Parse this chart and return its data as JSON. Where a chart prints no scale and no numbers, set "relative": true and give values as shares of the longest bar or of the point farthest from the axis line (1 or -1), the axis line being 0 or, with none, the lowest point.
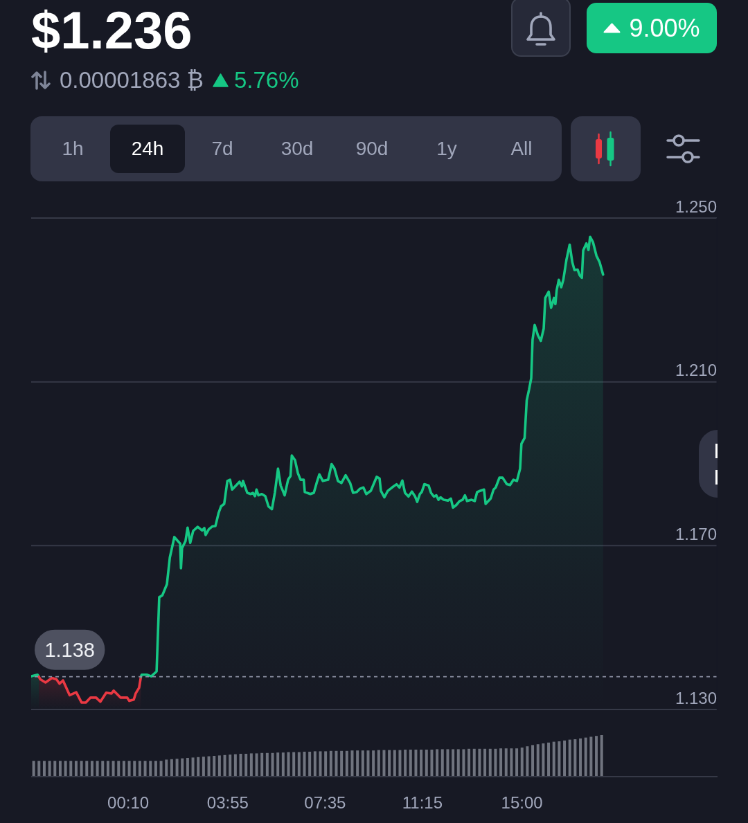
{
  "chart_data": [
    {
      "type": "area",
      "title": "$1.236",
      "subtitle": "0.00001863 ₿",
      "annotations": [
        "5.76%",
        "9.00%",
        "1h",
        "24h",
        "7d",
        "30d",
        "90d",
        "1y",
        "All"
      ],
      "series": [
        {
          "color": "#16c784",
          "x": [
            -3.49,
            -3.25,
            -3.2
          ],
          "values": [
            1.1381,
            1.1385,
            1.138
          ]
        },
        {
          "color": "#ea3943",
          "x": [
            -3.2,
            -3.15,
            -2.95,
            -2.71,
            -2.54,
            -2.42,
            -2.29,
            -2.04,
            -1.79,
            -1.59,
            -1.43,
            -1.25,
            -1.04,
            -0.88,
            -0.66,
            -0.46,
            -0.38,
            -0.12,
            0.13,
            0.21,
            0.38,
            0.45,
            0.58,
            0.65
          ],
          "values": [
            1.138,
            1.1374,
            1.1366,
            1.1377,
            1.1374,
            1.1363,
            1.1371,
            1.1335,
            1.1342,
            1.1317,
            1.1317,
            1.1329,
            1.1329,
            1.1319,
            1.1341,
            1.1339,
            1.1346,
            1.1329,
            1.1329,
            1.1321,
            1.1324,
            1.1339,
            1.1353,
            1.138
          ]
        },
        {
          "color": "#16c784",
          "x": [
            0.65,
            0.68,
            0.87,
            1.04,
            1.24,
            1.34,
            1.46,
            1.63,
            1.74,
            1.91,
            2.13,
            2.16,
            2.2,
            2.33,
            2.41,
            2.51,
            2.62,
            2.79,
            2.96,
            3.04,
            3.09,
            3.21,
            3.34,
            3.46,
            3.58,
            3.67,
            3.79,
            3.91,
            4.01,
            4.09,
            4.24,
            4.37,
            4.46,
            4.5,
            4.66,
            4.79,
            4.87,
            4.95,
            5.01,
            5.08,
            5.21,
            5.34,
            5.46,
            5.59,
            5.7,
            5.82,
            5.92,
            6.07,
            6.2,
            6.29,
            6.34,
            6.46,
            6.57,
            6.67,
            6.79,
            6.83,
            7.04,
            7.17,
            7.29,
            7.38,
            7.51,
            7.71,
            7.84,
            7.95,
            8.08,
            8.21,
            8.37,
            8.54,
            8.65,
            8.79,
            8.91,
            9.04,
            9.15,
            9.32,
            9.54,
            9.65,
            9.7,
            9.83,
            9.96,
            10.12,
            10.29,
            10.4,
            10.51,
            10.61,
            10.74,
            10.87,
            10.99,
            11.07,
            11.17,
            11.24,
            11.34,
            11.5,
            11.59,
            11.7,
            11.79,
            11.87,
            11.95,
            12.07,
            12.23,
            12.34,
            12.42,
            12.54,
            12.67,
            12.78,
            12.87,
            12.95,
            13.12,
            13.24,
            13.33,
            13.45,
            13.59,
            13.65,
            13.84,
            13.95,
            14.03,
            14.17,
            14.29,
            14.45,
            14.57,
            14.7,
            14.83,
            14.95,
            15.0,
            15.12,
            15.2,
            15.29,
            15.37,
            15.42,
            15.5,
            15.62,
            15.73,
            15.84,
            15.9,
            16.03,
            16.12,
            16.23,
            16.28,
            16.33,
            16.41,
            16.5,
            16.58,
            16.7,
            16.82,
            16.92,
            17.0,
            17.12,
            17.2,
            17.28,
            17.33,
            17.45,
            17.53,
            17.59,
            17.7,
            17.83,
            17.95,
            18.08
          ],
          "values": [
            1.138,
            1.1385,
            1.1385,
            1.1381,
            1.1393,
            1.1574,
            1.1579,
            1.1606,
            1.1671,
            1.1721,
            1.1705,
            1.1645,
            1.1694,
            1.1711,
            1.1744,
            1.1707,
            1.1736,
            1.1746,
            1.1737,
            1.1743,
            1.1726,
            1.174,
            1.1747,
            1.1748,
            1.178,
            1.1796,
            1.1802,
            1.1858,
            1.1861,
            1.1837,
            1.1847,
            1.1856,
            1.1845,
            1.1858,
            1.1829,
            1.1826,
            1.1829,
            1.1821,
            1.1837,
            1.1823,
            1.1826,
            1.1821,
            1.1796,
            1.1789,
            1.1829,
            1.1888,
            1.1847,
            1.1823,
            1.1861,
            1.187,
            1.192,
            1.1909,
            1.1877,
            1.1861,
            1.1861,
            1.1831,
            1.1826,
            1.1829,
            1.1856,
            1.1874,
            1.1858,
            1.1861,
            1.1899,
            1.1888,
            1.1858,
            1.1853,
            1.1872,
            1.1853,
            1.1829,
            1.1831,
            1.1839,
            1.1842,
            1.1826,
            1.1834,
            1.1868,
            1.1864,
            1.1834,
            1.1818,
            1.1834,
            1.1842,
            1.185,
            1.1842,
            1.1859,
            1.1829,
            1.182,
            1.1832,
            1.182,
            1.1807,
            1.1826,
            1.1831,
            1.185,
            1.1847,
            1.1829,
            1.182,
            1.1823,
            1.1812,
            1.1818,
            1.1812,
            1.181,
            1.1815,
            1.1793,
            1.1799,
            1.1809,
            1.1812,
            1.1823,
            1.1809,
            1.1812,
            1.1809,
            1.1831,
            1.1834,
            1.1837,
            1.1802,
            1.1815,
            1.1837,
            1.1842,
            1.1866,
            1.1866,
            1.185,
            1.1848,
            1.1861,
            1.1858,
            1.1888,
            1.1949,
            1.1963,
            1.2055,
            1.2082,
            1.2109,
            1.2203,
            1.2239,
            1.2214,
            1.22,
            1.223,
            1.2305,
            1.232,
            1.2281,
            1.2305,
            1.229,
            1.2324,
            1.2349,
            1.2331,
            1.2349,
            1.2399,
            1.2435,
            1.2392,
            1.2373,
            1.2374,
            1.236,
            1.2354,
            1.2421,
            1.2438,
            1.2422,
            1.2454,
            1.2441,
            1.2408,
            1.2392,
            1.2362
          ]
        }
      ],
      "xlim": [
        -3.49,
        22.37
      ],
      "ylim": [
        1.13,
        1.25
      ],
      "yticks": [
        {
          "value": 1.13,
          "label": "1.130"
        },
        {
          "value": 1.17,
          "label": "1.170"
        },
        {
          "value": 1.21,
          "label": "1.210"
        },
        {
          "value": 1.25,
          "label": "1.250"
        }
      ],
      "grid": "y",
      "tick_labels": "y",
      "ref_lines": [
        {
          "axis": "y",
          "value": 1.138,
          "label": "1.138",
          "line_style": "dashed",
          "color": "#8d92a5"
        }
      ]
    },
    {
      "type": "bar",
      "relative": true,
      "color": "#70747f",
      "x": [
        -3.4,
        -3.2,
        -3.0,
        -2.8,
        -2.6,
        -2.4,
        -2.2,
        -2.0,
        -1.8,
        -1.6,
        -1.4,
        -1.2,
        -1.0,
        -0.8,
        -0.6,
        -0.4,
        -0.2,
        0,
        0.2,
        0.4,
        0.6,
        0.8,
        1.0,
        1.2,
        1.4,
        1.6,
        1.8,
        2.0,
        2.2,
        2.4,
        2.6,
        2.8,
        3.0,
        3.2,
        3.4,
        3.6,
        3.8,
        4.0,
        4.2,
        4.4,
        4.6,
        4.8,
        5.0,
        5.2,
        5.4,
        5.6,
        5.8,
        6.0,
        6.2,
        6.4,
        6.6,
        6.8,
        7.0,
        7.2,
        7.4,
        7.6,
        7.8,
        8.0,
        8.2,
        8.4,
        8.6,
        8.8,
        9.0,
        9.2,
        9.4,
        9.6,
        9.8,
        10.0,
        10.2,
        10.4,
        10.6,
        10.8,
        11.0,
        11.2,
        11.4,
        11.6,
        11.8,
        12.0,
        12.2,
        12.4,
        12.6,
        12.8,
        13.0,
        13.2,
        13.4,
        13.6,
        13.8,
        14.0,
        14.2,
        14.4,
        14.6,
        14.8,
        15.0,
        15.2,
        15.4,
        15.6,
        15.8,
        16.0,
        16.2,
        16.4,
        16.6,
        16.8,
        17.0,
        17.2,
        17.4,
        17.6,
        17.8,
        18.0
      ],
      "values": [
        0.38,
        0.38,
        0.38,
        0.38,
        0.38,
        0.38,
        0.38,
        0.38,
        0.38,
        0.38,
        0.38,
        0.38,
        0.38,
        0.38,
        0.38,
        0.38,
        0.38,
        0.38,
        0.38,
        0.38,
        0.38,
        0.38,
        0.38,
        0.38,
        0.38,
        0.41,
        0.42,
        0.43,
        0.44,
        0.45,
        0.46,
        0.47,
        0.48,
        0.49,
        0.5,
        0.51,
        0.52,
        0.53,
        0.54,
        0.55,
        0.55,
        0.56,
        0.56,
        0.57,
        0.57,
        0.57,
        0.58,
        0.58,
        0.59,
        0.59,
        0.59,
        0.6,
        0.6,
        0.61,
        0.61,
        0.61,
        0.62,
        0.62,
        0.62,
        0.62,
        0.63,
        0.63,
        0.63,
        0.63,
        0.63,
        0.64,
        0.64,
        0.64,
        0.64,
        0.64,
        0.65,
        0.65,
        0.65,
        0.65,
        0.65,
        0.65,
        0.66,
        0.66,
        0.66,
        0.66,
        0.66,
        0.66,
        0.67,
        0.67,
        0.67,
        0.67,
        0.67,
        0.67,
        0.68,
        0.68,
        0.68,
        0.68,
        0.7,
        0.73,
        0.76,
        0.78,
        0.8,
        0.82,
        0.84,
        0.85,
        0.87,
        0.89,
        0.9,
        0.92,
        0.94,
        0.96,
        0.98,
        1
      ],
      "xlim": [
        -3.49,
        22.37
      ],
      "xticks": [
        {
          "value": 0.1667,
          "label": "00:10"
        },
        {
          "value": 3.9167,
          "label": "03:55"
        },
        {
          "value": 7.5833,
          "label": "07:35"
        },
        {
          "value": 11.25,
          "label": "11:15"
        },
        {
          "value": 15,
          "label": "15:00"
        }
      ],
      "tick_labels": "x"
    }
  ]
}
